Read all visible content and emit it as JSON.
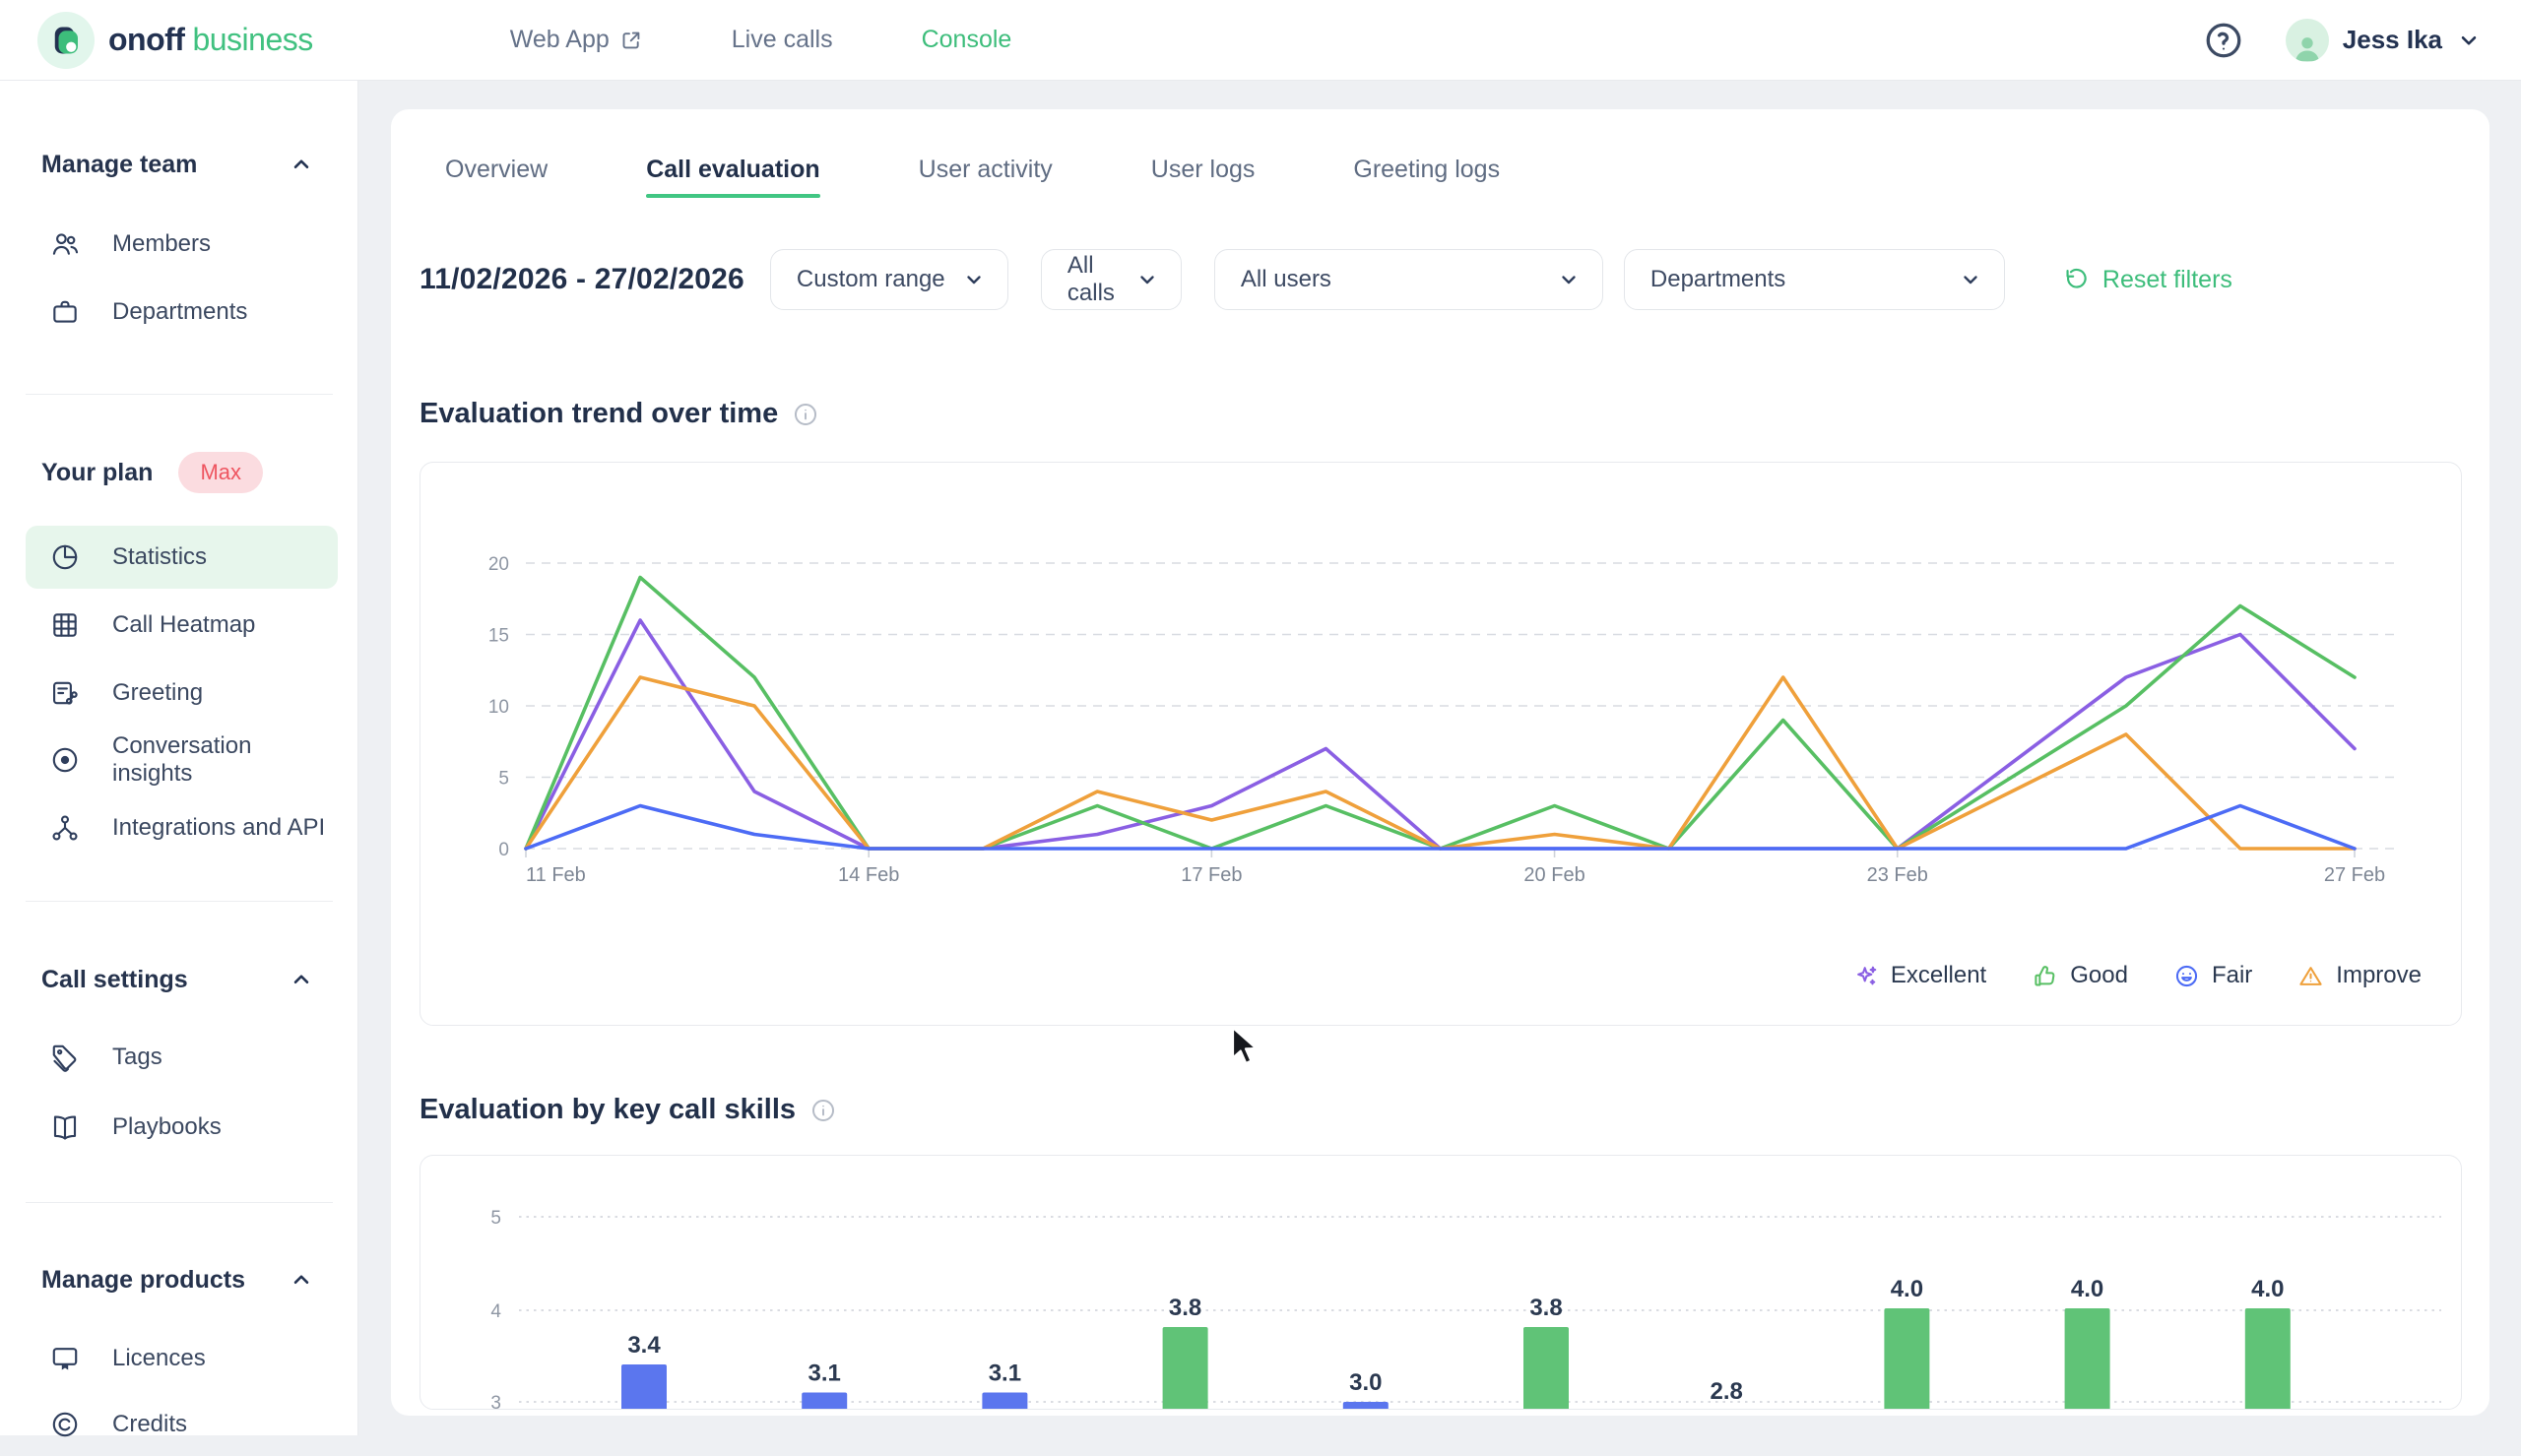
{
  "header": {
    "logo": {
      "primary": "onoff",
      "secondary": "business"
    },
    "nav": [
      {
        "label": "Web App",
        "icon": "external-link-icon",
        "active": false
      },
      {
        "label": "Live calls",
        "icon": null,
        "active": false
      },
      {
        "label": "Console",
        "icon": null,
        "active": true
      }
    ],
    "user": {
      "name": "Jess Ika"
    }
  },
  "sidebar": {
    "sections": [
      {
        "title": "Manage team",
        "items": [
          {
            "label": "Members",
            "icon": "members-icon",
            "active": false
          },
          {
            "label": "Departments",
            "icon": "departments-icon",
            "active": false
          }
        ]
      },
      {
        "plan": {
          "label": "Your plan",
          "badge": "Max"
        },
        "items": [
          {
            "label": "Statistics",
            "icon": "statistics-icon",
            "active": true
          },
          {
            "label": "Call Heatmap",
            "icon": "heatmap-icon",
            "active": false
          },
          {
            "label": "Greeting",
            "icon": "greeting-icon",
            "active": false
          },
          {
            "label": "Conversation insights",
            "icon": "insights-icon",
            "active": false
          },
          {
            "label": "Integrations and API",
            "icon": "integrations-icon",
            "active": false
          }
        ]
      },
      {
        "title": "Call settings",
        "items": [
          {
            "label": "Tags",
            "icon": "tag-icon",
            "active": false
          },
          {
            "label": "Playbooks",
            "icon": "playbook-icon",
            "active": false
          }
        ]
      },
      {
        "title": "Manage products",
        "items": [
          {
            "label": "Licences",
            "icon": "licence-icon",
            "active": false
          },
          {
            "label": "Credits",
            "icon": "credits-icon",
            "active": false
          }
        ]
      }
    ]
  },
  "main": {
    "tabs": [
      {
        "label": "Overview",
        "active": false
      },
      {
        "label": "Call evaluation",
        "active": true
      },
      {
        "label": "User activity",
        "active": false
      },
      {
        "label": "User logs",
        "active": false
      },
      {
        "label": "Greeting logs",
        "active": false
      }
    ],
    "filters": {
      "date_range": "11/02/2026 - 27/02/2026",
      "dropdowns": [
        {
          "value": "Custom range"
        },
        {
          "value": "All calls"
        },
        {
          "value": "All users"
        },
        {
          "value": "Departments"
        }
      ],
      "reset_label": "Reset filters"
    },
    "section_titles": [
      "Evaluation trend over time",
      "Evaluation by key call skills"
    ]
  },
  "chart_data": [
    {
      "type": "line",
      "title": "Evaluation trend over time",
      "x": [
        "11 Feb",
        "12 Feb",
        "13 Feb",
        "14 Feb",
        "15 Feb",
        "16 Feb",
        "17 Feb",
        "18 Feb",
        "19 Feb",
        "20 Feb",
        "21 Feb",
        "22 Feb",
        "23 Feb",
        "24 Feb",
        "25 Feb",
        "26 Feb",
        "27 Feb"
      ],
      "shown_x_ticks": [
        "11 Feb",
        "14 Feb",
        "17 Feb",
        "20 Feb",
        "23 Feb",
        "27 Feb"
      ],
      "ylim": [
        0,
        20
      ],
      "yticks": [
        0,
        5,
        10,
        15,
        20
      ],
      "grid": "dashed",
      "legend_position": "bottom-right",
      "series": [
        {
          "name": "Excellent",
          "icon": "sparkle-icon",
          "color": "#8a5fe3",
          "values": [
            0,
            16,
            4,
            0,
            0,
            1,
            3,
            7,
            0,
            0,
            0,
            0,
            0,
            6,
            12,
            15,
            7
          ]
        },
        {
          "name": "Good",
          "icon": "thumbs-up-icon",
          "color": "#57bf63",
          "values": [
            0,
            19,
            12,
            0,
            0,
            3,
            0,
            3,
            0,
            3,
            0,
            9,
            0,
            5,
            10,
            17,
            12
          ]
        },
        {
          "name": "Fair",
          "icon": "smiley-icon",
          "color": "#4c6bf5",
          "values": [
            0,
            3,
            1,
            0,
            0,
            0,
            0,
            0,
            0,
            0,
            0,
            0,
            0,
            0,
            0,
            3,
            0
          ]
        },
        {
          "name": "Improve",
          "icon": "warning-icon",
          "color": "#efa03b",
          "values": [
            0,
            12,
            10,
            0,
            0,
            4,
            2,
            4,
            0,
            1,
            0,
            12,
            0,
            4,
            8,
            0,
            0
          ]
        }
      ]
    },
    {
      "type": "bar",
      "title": "Evaluation by key call skills",
      "values": [
        3.4,
        3.1,
        3.1,
        3.8,
        3.0,
        3.8,
        2.8,
        4.0,
        4.0,
        4.0
      ],
      "value_labels": [
        "3.4",
        "3.1",
        "3.1",
        "3.8",
        "3.0",
        "3.8",
        "2.8",
        "4.0",
        "4.0",
        "4.0"
      ],
      "bar_colors": [
        "#5b76ee",
        "#5b76ee",
        "#5b76ee",
        "#60c377",
        "#5b76ee",
        "#60c377",
        "#5b76ee",
        "#60c377",
        "#60c377",
        "#60c377"
      ],
      "yticks_visible": [
        5,
        4,
        3
      ],
      "ylim_visible": [
        3,
        5
      ],
      "grid": "dotted",
      "categories_visible": false
    }
  ],
  "colors": {
    "brand_green": "#3dbd7b",
    "navy": "#26334d",
    "plan_badge_bg": "#fbdce0",
    "plan_badge_text": "#ee5560",
    "active_item_bg": "#e7f6ec",
    "page_bg": "#eef0f3",
    "card_border": "#e8eaee",
    "bar_blue": "#5b76ee",
    "bar_green": "#60c377"
  }
}
